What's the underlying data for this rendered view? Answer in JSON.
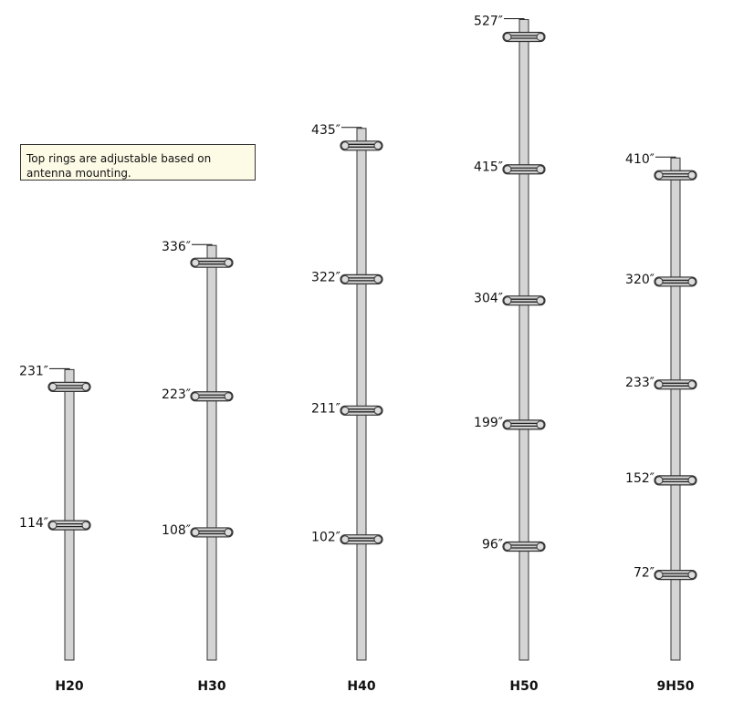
{
  "note": "Top rings are adjustable based on antenna mounting.",
  "colors": {
    "pole": "#d4d4d4",
    "outline": "#333333",
    "ring": "#cfcfcf"
  },
  "poles": [
    {
      "name": "H20",
      "rings": [
        "231″",
        "114″"
      ],
      "heights": [
        231,
        114
      ]
    },
    {
      "name": "H30",
      "rings": [
        "336″",
        "223″",
        "108″"
      ],
      "heights": [
        336,
        223,
        108
      ]
    },
    {
      "name": "H40",
      "rings": [
        "435″",
        "322″",
        "211″",
        "102″"
      ],
      "heights": [
        435,
        322,
        211,
        102
      ]
    },
    {
      "name": "H50",
      "rings": [
        "527″",
        "415″",
        "304″",
        "199″",
        "96″"
      ],
      "heights": [
        527,
        415,
        304,
        199,
        96
      ]
    },
    {
      "name": "9H50",
      "rings": [
        "410″",
        "320″",
        "233″",
        "152″",
        "72″"
      ],
      "heights": [
        410,
        320,
        233,
        152,
        72
      ]
    }
  ]
}
